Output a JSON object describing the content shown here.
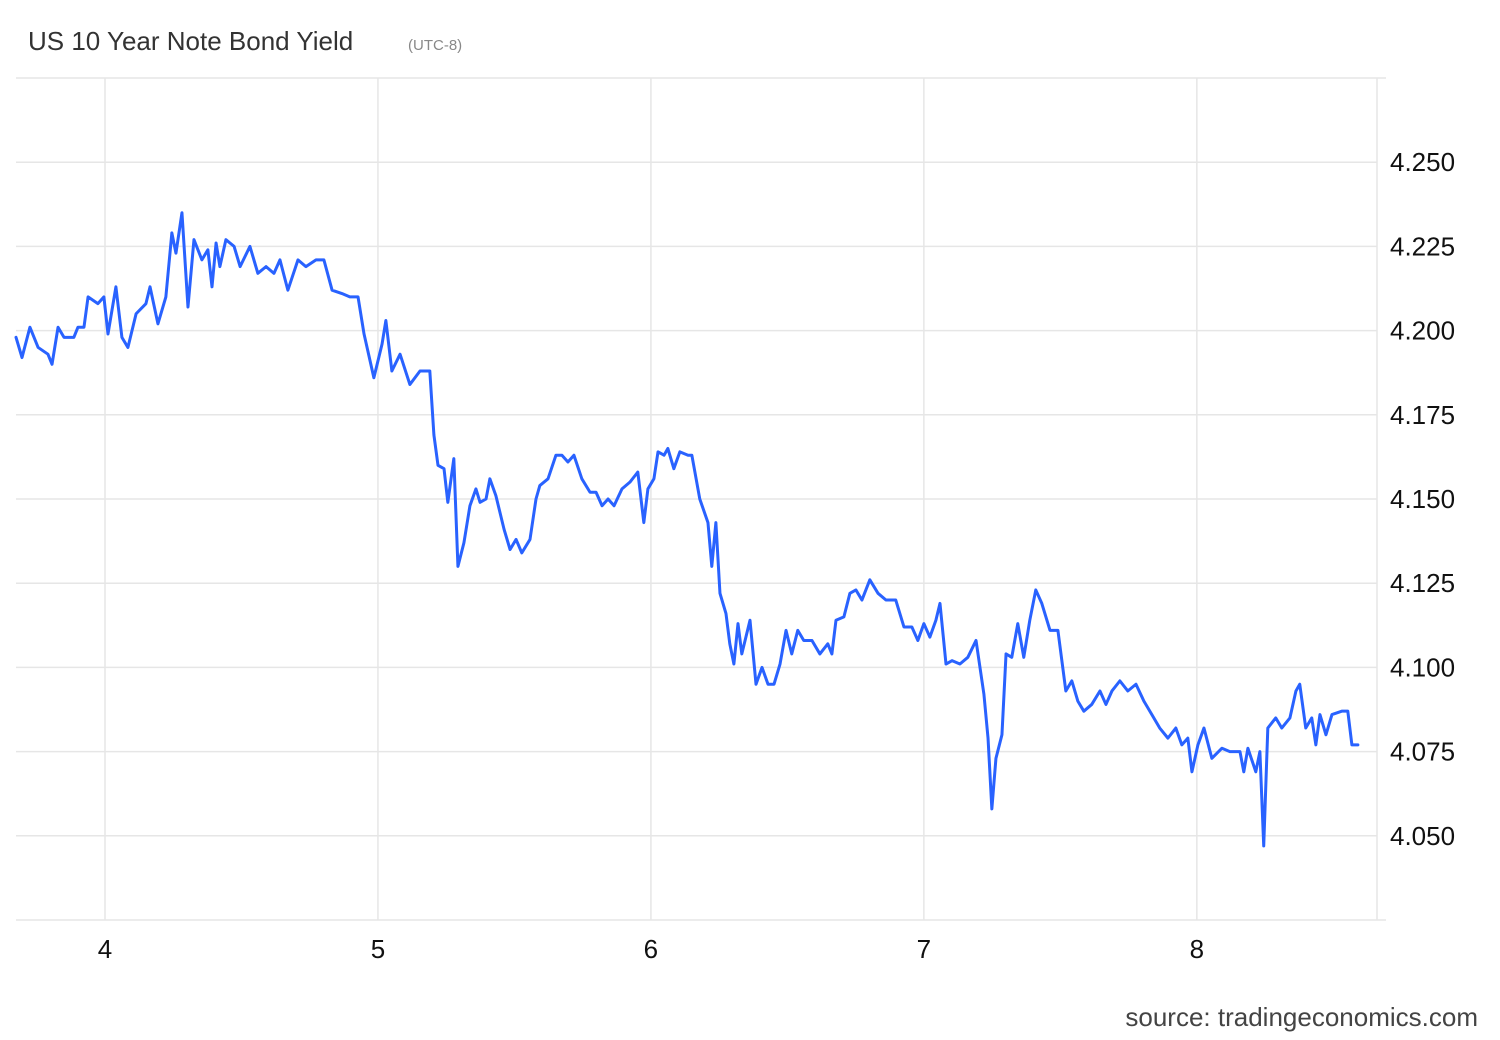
{
  "chart_data": {
    "type": "line",
    "title": "US 10 Year Note Bond Yield",
    "subtitle": "(UTC-8)",
    "source": "source: tradingeconomics.com",
    "color": "#2962ff",
    "grid": true,
    "xlim": [
      3.674,
      8.66
    ],
    "xticks": [
      4,
      5,
      6,
      7,
      8
    ],
    "ylim": [
      4.025,
      4.275
    ],
    "yticks": [
      {
        "value": 4.05,
        "label": "4.050"
      },
      4.075,
      {
        "value": 4.1,
        "label": "4.100"
      },
      4.125,
      {
        "value": 4.15,
        "label": "4.150"
      },
      4.175,
      {
        "value": 4.2,
        "label": "4.200"
      },
      4.225,
      {
        "value": 4.25,
        "label": "4.250"
      }
    ],
    "x": [
      3.674,
      3.696,
      3.725,
      3.755,
      3.791,
      3.806,
      3.828,
      3.85,
      3.886,
      3.901,
      3.923,
      3.938,
      3.974,
      3.996,
      4.011,
      4.04,
      4.062,
      4.084,
      4.114,
      4.15,
      4.165,
      4.194,
      4.223,
      4.245,
      4.26,
      4.282,
      4.304,
      4.326,
      4.355,
      4.377,
      4.392,
      4.407,
      4.421,
      4.443,
      4.473,
      4.495,
      4.531,
      4.56,
      4.59,
      4.619,
      4.641,
      4.67,
      4.707,
      4.736,
      4.773,
      4.802,
      4.832,
      4.868,
      4.897,
      4.927,
      4.949,
      4.985,
      5.015,
      5.029,
      5.051,
      5.081,
      5.117,
      5.154,
      5.19,
      5.205,
      5.22,
      5.242,
      5.256,
      5.278,
      5.293,
      5.315,
      5.337,
      5.359,
      5.374,
      5.396,
      5.41,
      5.432,
      5.462,
      5.484,
      5.506,
      5.527,
      5.557,
      5.579,
      5.593,
      5.623,
      5.652,
      5.674,
      5.696,
      5.718,
      5.747,
      5.777,
      5.799,
      5.821,
      5.843,
      5.865,
      5.894,
      5.923,
      5.952,
      5.974,
      5.989,
      6.011,
      6.026,
      6.048,
      6.062,
      6.084,
      6.106,
      6.136,
      6.15,
      6.179,
      6.209,
      6.223,
      6.238,
      6.253,
      6.275,
      6.289,
      6.304,
      6.319,
      6.333,
      6.363,
      6.385,
      6.407,
      6.429,
      6.451,
      6.473,
      6.495,
      6.516,
      6.538,
      6.56,
      6.59,
      6.619,
      6.648,
      6.663,
      6.678,
      6.707,
      6.729,
      6.751,
      6.773,
      6.802,
      6.832,
      6.861,
      6.897,
      6.927,
      6.956,
      6.978,
      7.0,
      7.022,
      7.044,
      7.059,
      7.081,
      7.103,
      7.132,
      7.161,
      7.191,
      7.22,
      7.235,
      7.249,
      7.264,
      7.286,
      7.301,
      7.322,
      7.344,
      7.366,
      7.388,
      7.41,
      7.432,
      7.462,
      7.491,
      7.52,
      7.542,
      7.564,
      7.586,
      7.615,
      7.645,
      7.667,
      7.689,
      7.718,
      7.747,
      7.777,
      7.806,
      7.835,
      7.864,
      7.894,
      7.923,
      7.945,
      7.967,
      7.982,
      8.004,
      8.026,
      8.055,
      8.092,
      8.121,
      8.158,
      8.172,
      8.187,
      8.216,
      8.231,
      8.245,
      8.26,
      8.289,
      8.311,
      8.341,
      8.363,
      8.377,
      8.399,
      8.421,
      8.436,
      8.451,
      8.473,
      8.495,
      8.531,
      8.553,
      8.568,
      8.59
    ],
    "values": [
      4.198,
      4.192,
      4.201,
      4.195,
      4.193,
      4.19,
      4.201,
      4.198,
      4.198,
      4.201,
      4.201,
      4.21,
      4.208,
      4.21,
      4.199,
      4.213,
      4.198,
      4.195,
      4.205,
      4.208,
      4.213,
      4.202,
      4.21,
      4.229,
      4.223,
      4.235,
      4.207,
      4.227,
      4.221,
      4.224,
      4.213,
      4.226,
      4.219,
      4.227,
      4.225,
      4.219,
      4.225,
      4.217,
      4.219,
      4.217,
      4.221,
      4.212,
      4.221,
      4.219,
      4.221,
      4.221,
      4.212,
      4.211,
      4.21,
      4.21,
      4.199,
      4.186,
      4.196,
      4.203,
      4.188,
      4.193,
      4.184,
      4.188,
      4.188,
      4.169,
      4.16,
      4.159,
      4.149,
      4.162,
      4.13,
      4.137,
      4.148,
      4.153,
      4.149,
      4.15,
      4.156,
      4.151,
      4.141,
      4.135,
      4.138,
      4.134,
      4.138,
      4.15,
      4.154,
      4.156,
      4.163,
      4.163,
      4.161,
      4.163,
      4.156,
      4.152,
      4.152,
      4.148,
      4.15,
      4.148,
      4.153,
      4.155,
      4.158,
      4.143,
      4.153,
      4.156,
      4.164,
      4.163,
      4.165,
      4.159,
      4.164,
      4.163,
      4.163,
      4.15,
      4.143,
      4.13,
      4.143,
      4.122,
      4.116,
      4.107,
      4.101,
      4.113,
      4.104,
      4.114,
      4.095,
      4.1,
      4.095,
      4.095,
      4.101,
      4.111,
      4.104,
      4.111,
      4.108,
      4.108,
      4.104,
      4.107,
      4.104,
      4.114,
      4.115,
      4.122,
      4.123,
      4.12,
      4.126,
      4.122,
      4.12,
      4.12,
      4.112,
      4.112,
      4.108,
      4.113,
      4.109,
      4.114,
      4.119,
      4.101,
      4.102,
      4.101,
      4.103,
      4.108,
      4.092,
      4.079,
      4.058,
      4.073,
      4.08,
      4.104,
      4.103,
      4.113,
      4.103,
      4.114,
      4.123,
      4.119,
      4.111,
      4.111,
      4.093,
      4.096,
      4.09,
      4.087,
      4.089,
      4.093,
      4.089,
      4.093,
      4.096,
      4.093,
      4.095,
      4.09,
      4.086,
      4.082,
      4.079,
      4.082,
      4.077,
      4.079,
      4.069,
      4.077,
      4.082,
      4.073,
      4.076,
      4.075,
      4.075,
      4.069,
      4.076,
      4.069,
      4.075,
      4.047,
      4.082,
      4.085,
      4.082,
      4.085,
      4.093,
      4.095,
      4.082,
      4.085,
      4.077,
      4.086,
      4.08,
      4.086,
      4.087,
      4.087,
      4.077,
      4.077
    ]
  }
}
